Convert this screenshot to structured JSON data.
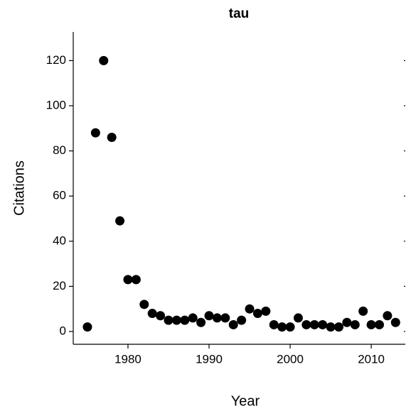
{
  "chart_data": {
    "type": "scatter",
    "title": "tau",
    "xlabel": "Year",
    "ylabel": "Citations",
    "x": [
      1975,
      1976,
      1977,
      1978,
      1979,
      1980,
      1981,
      1982,
      1983,
      1984,
      1985,
      1986,
      1987,
      1988,
      1989,
      1990,
      1991,
      1992,
      1993,
      1994,
      1995,
      1996,
      1997,
      1998,
      1999,
      2000,
      2001,
      2002,
      2003,
      2004,
      2005,
      2006,
      2007,
      2008,
      2009,
      2010,
      2011,
      2012,
      2013
    ],
    "values": [
      2,
      88,
      120,
      86,
      49,
      23,
      23,
      12,
      8,
      7,
      5,
      5,
      5,
      6,
      4,
      7,
      6,
      6,
      3,
      5,
      10,
      8,
      9,
      3,
      2,
      2,
      6,
      3,
      3,
      3,
      2,
      2,
      4,
      3,
      9,
      3,
      3,
      7,
      4
    ],
    "color": "#000000",
    "xlim": [
      1973.25,
      2014.2
    ],
    "xticks": [
      1980,
      1990,
      2000,
      2010
    ],
    "ylim": [
      -5.66,
      132.7
    ],
    "yticks": [
      0,
      20,
      40,
      60,
      80,
      100,
      120
    ]
  }
}
